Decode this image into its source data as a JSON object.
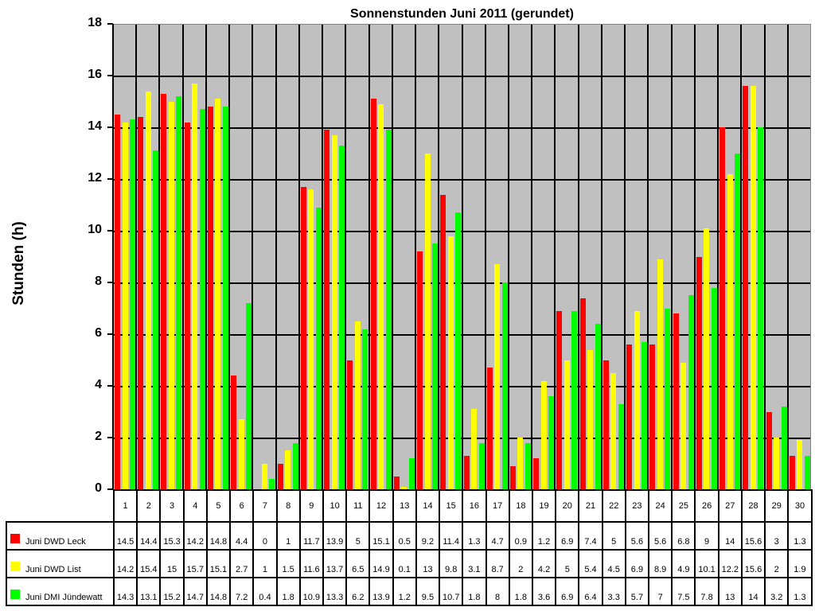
{
  "chart_data": {
    "type": "bar",
    "title": "Sonnenstunden Juni 2011 (gerundet)",
    "xlabel": "",
    "ylabel": "Stunden (h)",
    "ylim": [
      0,
      18
    ],
    "yticks": [
      0,
      2,
      4,
      6,
      8,
      10,
      12,
      14,
      16,
      18
    ],
    "grid": true,
    "legend_position": "data-table-left",
    "categories": [
      "1",
      "2",
      "3",
      "4",
      "5",
      "6",
      "7",
      "8",
      "9",
      "10",
      "11",
      "12",
      "13",
      "14",
      "15",
      "16",
      "17",
      "18",
      "19",
      "20",
      "21",
      "22",
      "23",
      "24",
      "25",
      "26",
      "27",
      "28",
      "29",
      "30"
    ],
    "series": [
      {
        "name": "Juni DWD Leck",
        "color": "#ff0000",
        "values": [
          14.5,
          14.4,
          15.3,
          14.2,
          14.8,
          4.4,
          0,
          1,
          11.7,
          13.9,
          5,
          15.1,
          0.5,
          9.2,
          11.4,
          1.3,
          4.7,
          0.9,
          1.2,
          6.9,
          7.4,
          5,
          5.6,
          5.6,
          6.8,
          9,
          14,
          15.6,
          3,
          1.3
        ]
      },
      {
        "name": "Juni DWD List",
        "color": "#ffff00",
        "values": [
          14.2,
          15.4,
          15,
          15.7,
          15.1,
          2.7,
          1,
          1.5,
          11.6,
          13.7,
          6.5,
          14.9,
          0.1,
          13,
          9.8,
          3.1,
          8.7,
          2,
          4.2,
          5,
          5.4,
          4.5,
          6.9,
          8.9,
          4.9,
          10.1,
          12.2,
          15.6,
          2,
          1.9
        ]
      },
      {
        "name": "Juni DMI Jündewatt",
        "color": "#00ff00",
        "values": [
          14.3,
          13.1,
          15.2,
          14.7,
          14.8,
          7.2,
          0.4,
          1.8,
          10.9,
          13.3,
          6.2,
          13.9,
          1.2,
          9.5,
          10.7,
          1.8,
          8,
          1.8,
          3.6,
          6.9,
          6.4,
          3.3,
          5.7,
          7,
          7.5,
          7.8,
          13,
          14,
          3.2,
          1.3
        ]
      }
    ]
  },
  "colors": {
    "plot_bg": "#c0c0c0",
    "grid": "#000000"
  }
}
